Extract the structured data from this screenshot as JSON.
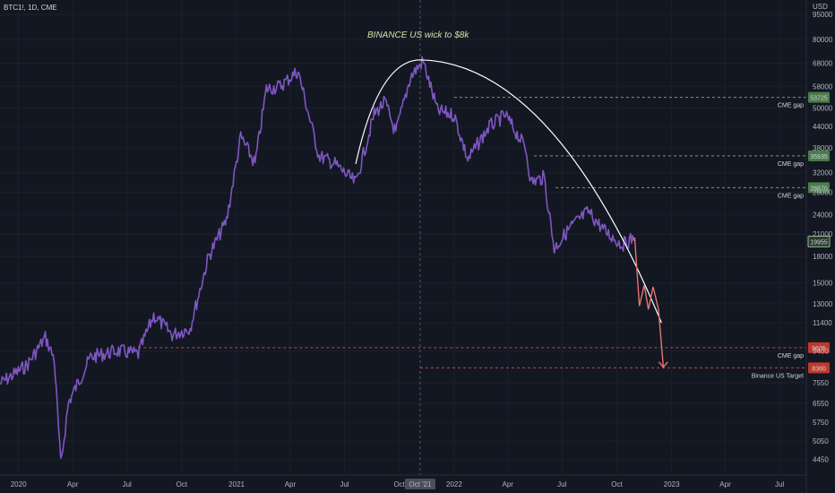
{
  "symbol_label": "BTC1!, 1D, CME",
  "chart_data": {
    "type": "line",
    "title": "BINANCE US wick to $8k",
    "currency": "USD",
    "y_scale": "log",
    "ylim": [
      4000,
      105000
    ],
    "x_ticks": [
      "2020",
      "Apr",
      "Jul",
      "Oct",
      "2021",
      "Apr",
      "Jul",
      "Oct",
      "Oct '21",
      "2022",
      "Apr",
      "Jul",
      "Oct",
      "2023",
      "Apr",
      "Jul"
    ],
    "y_ticks": [
      4450,
      5050,
      5750,
      6550,
      7550,
      9400,
      11400,
      13000,
      15000,
      18000,
      21000,
      24000,
      28000,
      32000,
      38000,
      44000,
      50000,
      58000,
      68000,
      80000,
      95000
    ],
    "price_series": {
      "name": "BTC1!",
      "x": [
        "2019-12-01",
        "2020-01-15",
        "2020-02-15",
        "2020-03-01",
        "2020-03-12",
        "2020-03-25",
        "2020-05-01",
        "2020-06-15",
        "2020-07-20",
        "2020-08-15",
        "2020-09-15",
        "2020-10-15",
        "2020-11-15",
        "2020-12-15",
        "2021-01-08",
        "2021-02-01",
        "2021-02-20",
        "2021-03-15",
        "2021-04-14",
        "2021-05-19",
        "2021-06-15",
        "2021-07-20",
        "2021-08-20",
        "2021-09-07",
        "2021-09-25",
        "2021-10-20",
        "2021-11-10",
        "2021-12-04",
        "2022-01-01",
        "2022-01-24",
        "2022-03-01",
        "2022-03-28",
        "2022-05-01",
        "2022-05-10",
        "2022-06-01",
        "2022-06-18",
        "2022-07-15",
        "2022-08-14",
        "2022-09-10",
        "2022-10-10",
        "2022-10-31"
      ],
      "y": [
        7500,
        8500,
        10300,
        8900,
        4300,
        6600,
        9000,
        9400,
        9200,
        12000,
        10500,
        11000,
        18000,
        23000,
        41000,
        34000,
        57000,
        58000,
        64500,
        36000,
        34000,
        29800,
        48000,
        52000,
        42000,
        62000,
        69000,
        49000,
        47500,
        35000,
        44000,
        47500,
        38000,
        30000,
        31000,
        19000,
        22000,
        24500,
        21500,
        19500,
        20500
      ]
    },
    "trend_arc": {
      "from_date": "2021-07-20",
      "to_date": "2022-12-15",
      "peak_date": "2021-11-10",
      "peak_value": 69500
    },
    "projection": {
      "x": [
        "2022-10-31",
        "2022-11-08",
        "2022-11-16",
        "2022-11-23",
        "2022-12-01",
        "2022-12-10",
        "2022-12-18"
      ],
      "y": [
        20500,
        12800,
        14800,
        12500,
        14600,
        12500,
        8400
      ]
    },
    "levels": [
      {
        "label": "CME gap",
        "value": 53725,
        "text": "53725",
        "color": "#8fbf8a"
      },
      {
        "label": "CME gap",
        "value": 35935,
        "text": "35935",
        "color": "#8fbf8a"
      },
      {
        "label": "CME gap",
        "value": 28870,
        "text": "28870",
        "color": "#8fbf8a"
      },
      {
        "label": "CME gap",
        "value": 9605,
        "text": "9605",
        "color": "#ef5350"
      },
      {
        "label": "Binance US Target",
        "value": 8360,
        "text": "8360",
        "color": "#ef5350"
      }
    ],
    "current_price": {
      "value": 19955,
      "text": "19955"
    },
    "crosshair_date_label": "04 Oct '21"
  }
}
